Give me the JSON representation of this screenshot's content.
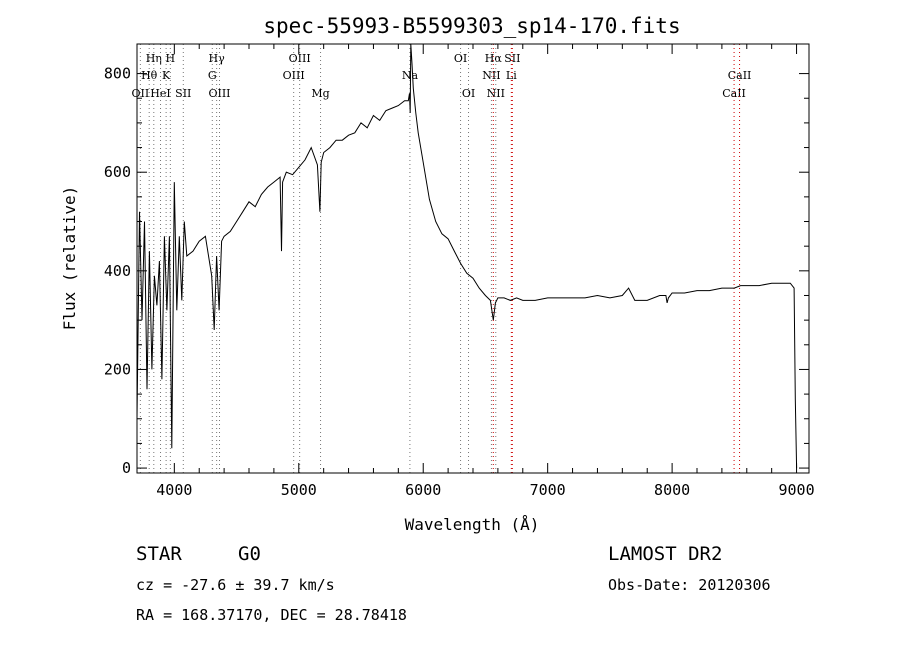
{
  "chart_data": {
    "type": "line",
    "title": "spec-55993-B5599303_sp14-170.fits",
    "xlabel": "Wavelength (Å)",
    "ylabel": "Flux (relative)",
    "xlim": [
      3700,
      9100
    ],
    "ylim": [
      -10,
      860
    ],
    "x_ticks": [
      4000,
      5000,
      6000,
      7000,
      8000,
      9000
    ],
    "y_ticks": [
      0,
      200,
      400,
      600,
      800
    ],
    "grid": false,
    "line_color": "#000000",
    "series": [
      {
        "x": [
          3700,
          3720,
          3740,
          3760,
          3780,
          3800,
          3820,
          3840,
          3860,
          3880,
          3900,
          3920,
          3940,
          3960,
          3980,
          4000,
          4020,
          4040,
          4060,
          4080,
          4100,
          4150,
          4200,
          4250,
          4300,
          4320,
          4340,
          4360,
          4380,
          4400,
          4450,
          4500,
          4550,
          4600,
          4650,
          4700,
          4750,
          4800,
          4850,
          4861,
          4870,
          4900,
          4950,
          5000,
          5050,
          5100,
          5150,
          5170,
          5180,
          5200,
          5250,
          5300,
          5350,
          5400,
          5450,
          5500,
          5550,
          5600,
          5650,
          5700,
          5750,
          5800,
          5850,
          5880,
          5890,
          5895,
          5900,
          5910,
          5920,
          5940,
          5960,
          5980,
          6000,
          6050,
          6100,
          6150,
          6200,
          6250,
          6300,
          6350,
          6400,
          6450,
          6500,
          6540,
          6563,
          6580,
          6600,
          6650,
          6700,
          6750,
          6800,
          6900,
          7000,
          7100,
          7200,
          7300,
          7400,
          7500,
          7600,
          7650,
          7700,
          7800,
          7900,
          7950,
          7960,
          7970,
          8000,
          8100,
          8200,
          8300,
          8400,
          8500,
          8550,
          8600,
          8700,
          8800,
          8900,
          8950,
          8980,
          8990,
          9000
        ],
        "values": [
          100,
          520,
          300,
          500,
          160,
          440,
          200,
          390,
          330,
          420,
          180,
          470,
          320,
          470,
          40,
          580,
          320,
          470,
          340,
          500,
          430,
          440,
          460,
          470,
          390,
          280,
          430,
          320,
          460,
          470,
          480,
          500,
          520,
          540,
          530,
          555,
          570,
          580,
          590,
          440,
          580,
          600,
          595,
          610,
          625,
          650,
          615,
          520,
          620,
          640,
          650,
          665,
          665,
          675,
          680,
          700,
          690,
          715,
          705,
          725,
          730,
          735,
          745,
          745,
          760,
          720,
          860,
          820,
          770,
          720,
          680,
          650,
          620,
          545,
          500,
          475,
          465,
          440,
          415,
          395,
          385,
          365,
          350,
          340,
          300,
          335,
          345,
          345,
          340,
          345,
          340,
          340,
          345,
          345,
          345,
          345,
          350,
          345,
          350,
          365,
          340,
          340,
          350,
          350,
          335,
          345,
          355,
          355,
          360,
          360,
          365,
          365,
          370,
          370,
          370,
          375,
          375,
          375,
          365,
          140,
          0
        ]
      }
    ],
    "lines": [
      {
        "label": "OII",
        "x": 3727,
        "row": 3
      },
      {
        "label": "Hθ",
        "x": 3798,
        "row": 2
      },
      {
        "label": "Hη",
        "x": 3835,
        "row": 1
      },
      {
        "label": "HeI",
        "x": 3889,
        "row": 3
      },
      {
        "label": "K",
        "x": 3934,
        "row": 2
      },
      {
        "label": "H",
        "x": 3968,
        "row": 1
      },
      {
        "label": "SII",
        "x": 4072,
        "row": 3
      },
      {
        "label": "G",
        "x": 4305,
        "row": 2
      },
      {
        "label": "Hγ",
        "x": 4340,
        "row": 1
      },
      {
        "label": "OIII",
        "x": 4363,
        "row": 3
      },
      {
        "label": "OIII",
        "x": 4959,
        "row": 2
      },
      {
        "label": "OIII",
        "x": 5007,
        "row": 1
      },
      {
        "label": "Mg",
        "x": 5175,
        "row": 3
      },
      {
        "label": "Na",
        "x": 5893,
        "row": 2
      },
      {
        "label": "OI",
        "x": 6300,
        "row": 1
      },
      {
        "label": "OI",
        "x": 6364,
        "row": 3
      },
      {
        "label": "NII",
        "x": 6548,
        "row": 2
      },
      {
        "label": "Hα",
        "x": 6563,
        "row": 1
      },
      {
        "label": "NII",
        "x": 6583,
        "row": 3
      },
      {
        "label": "Li",
        "x": 6708,
        "row": 2
      },
      {
        "label": "SII",
        "x": 6716,
        "row": 1
      },
      {
        "label": "CaII",
        "x": 8498,
        "row": 3
      },
      {
        "label": "CaII",
        "x": 8542,
        "row": 2
      }
    ]
  },
  "info": {
    "class_label": "STAR",
    "subclass": "G0",
    "survey": "LAMOST DR2",
    "redshift": "cz = -27.6 ± 39.7 km/s",
    "obs_date": "Obs-Date: 20120306",
    "coords": "RA = 168.37170, DEC =  28.78418"
  },
  "colors": {
    "red_line": "#cc0000",
    "black_line": "#000000"
  }
}
